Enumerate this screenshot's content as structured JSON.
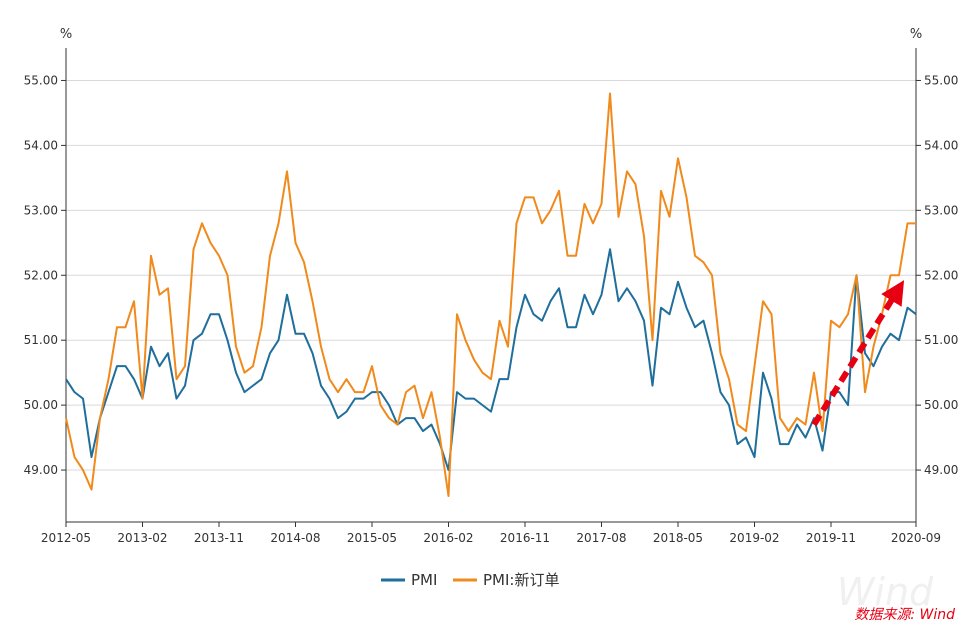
{
  "chart_data": {
    "type": "line",
    "title": "",
    "xlabel": "",
    "ylabel_left": "%",
    "ylabel_right": "%",
    "ylim": [
      48.2,
      55.5
    ],
    "yticks": [
      49,
      50,
      51,
      52,
      53,
      54,
      55
    ],
    "ytick_labels": [
      "49.00",
      "50.00",
      "51.00",
      "52.00",
      "53.00",
      "54.00",
      "55.00"
    ],
    "xtick_labels": [
      "2012-05",
      "2013-02",
      "2013-11",
      "2014-08",
      "2015-05",
      "2016-02",
      "2016-11",
      "2017-08",
      "2018-05",
      "2019-02",
      "2019-11",
      "2020-09"
    ],
    "xtick_indices": [
      0,
      9,
      18,
      27,
      36,
      45,
      54,
      63,
      72,
      81,
      90,
      100
    ],
    "x_start": "2012-05",
    "x_end": "2020-10",
    "grid": true,
    "legend_position": "bottom",
    "series": [
      {
        "name": "PMI",
        "color": "#1f6e9c",
        "values": [
          50.4,
          50.2,
          50.1,
          49.2,
          49.8,
          50.2,
          50.6,
          50.6,
          50.4,
          50.1,
          50.9,
          50.6,
          50.8,
          50.1,
          50.3,
          51.0,
          51.1,
          51.4,
          51.4,
          51.0,
          50.5,
          50.2,
          50.3,
          50.4,
          50.8,
          51.0,
          51.7,
          51.1,
          51.1,
          50.8,
          50.3,
          50.1,
          49.8,
          49.9,
          50.1,
          50.1,
          50.2,
          50.2,
          50.0,
          49.7,
          49.8,
          49.8,
          49.6,
          49.7,
          49.4,
          49.0,
          50.2,
          50.1,
          50.1,
          50.0,
          49.9,
          50.4,
          50.4,
          51.2,
          51.7,
          51.4,
          51.3,
          51.6,
          51.8,
          51.2,
          51.2,
          51.7,
          51.4,
          51.7,
          52.4,
          51.6,
          51.8,
          51.6,
          51.3,
          50.3,
          51.5,
          51.4,
          51.9,
          51.5,
          51.2,
          51.3,
          50.8,
          50.2,
          50.0,
          49.4,
          49.5,
          49.2,
          50.5,
          50.1,
          49.4,
          49.4,
          49.7,
          49.5,
          49.8,
          49.3,
          50.2,
          50.2,
          50.0,
          52.0,
          50.8,
          50.6,
          50.9,
          51.1,
          51.0,
          51.5,
          51.4
        ],
        "label_index": -1
      },
      {
        "name": "PMI:新订单",
        "color": "#f08a1c",
        "values": [
          49.8,
          49.2,
          49.0,
          48.7,
          49.8,
          50.4,
          51.2,
          51.2,
          51.6,
          50.1,
          52.3,
          51.7,
          51.8,
          50.4,
          50.6,
          52.4,
          52.8,
          52.5,
          52.3,
          52.0,
          50.9,
          50.5,
          50.6,
          51.2,
          52.3,
          52.8,
          53.6,
          52.5,
          52.2,
          51.6,
          50.9,
          50.4,
          50.2,
          50.4,
          50.2,
          50.2,
          50.6,
          50.0,
          49.8,
          49.7,
          50.2,
          50.3,
          49.8,
          50.2,
          49.5,
          48.6,
          51.4,
          51.0,
          50.7,
          50.5,
          50.4,
          51.3,
          50.9,
          52.8,
          53.2,
          53.2,
          52.8,
          53.0,
          53.3,
          52.3,
          52.3,
          53.1,
          52.8,
          53.1,
          54.8,
          52.9,
          53.6,
          53.4,
          52.6,
          51.0,
          53.3,
          52.9,
          53.8,
          53.2,
          52.3,
          52.2,
          52.0,
          50.8,
          50.4,
          49.7,
          49.6,
          50.6,
          51.6,
          51.4,
          49.8,
          49.6,
          49.8,
          49.7,
          50.5,
          49.6,
          51.3,
          51.2,
          51.4,
          52.0,
          50.2,
          50.9,
          51.4,
          52.0,
          52.0,
          52.8,
          52.8
        ]
      }
    ],
    "annotation": {
      "type": "arrow",
      "color": "#e60012",
      "from_index": 88,
      "from_value": 49.7,
      "to_index": 98,
      "to_value": 51.8,
      "style": "dashed-thick"
    }
  },
  "source_label": "数据来源: Wind",
  "watermark": "Wind"
}
